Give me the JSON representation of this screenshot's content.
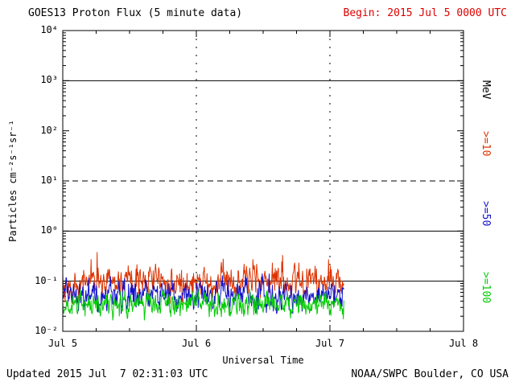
{
  "page": {
    "background": "#ffffff",
    "axis_color": "#000000"
  },
  "header": {
    "title": "GOES13 Proton Flux (5 minute data)",
    "begin_label": "Begin: 2015 Jul 5 0000 UTC",
    "begin_color": "#dd0000"
  },
  "footer": {
    "updated": "Updated 2015 Jul  7 02:31:03 UTC",
    "credit": "NOAA/SWPC Boulder, CO USA"
  },
  "chart_data": {
    "type": "line",
    "title": "GOES13 Proton Flux (5 minute data)",
    "xlabel": "Universal Time",
    "ylabel": "Particles cm⁻²s⁻¹sr⁻¹",
    "unit_label": "MeV",
    "xticklabels": [
      "Jul 5",
      "Jul 6",
      "Jul 7",
      "Jul 8"
    ],
    "xlim_days": [
      0,
      3
    ],
    "ylim": [
      0.01,
      10000
    ],
    "yticklabels": [
      "10⁴",
      "10³",
      "10²",
      "10¹",
      "10⁰",
      "10⁻¹",
      "10⁻²"
    ],
    "solid_gridlines": [
      1000,
      1,
      0.1
    ],
    "dashed_gridlines": [
      10
    ],
    "vertical_gridlines_days": [
      1,
      2
    ],
    "cadence_minutes": 5,
    "data_end_day": 2.105,
    "seed": 20150707,
    "series": [
      {
        "label": ">=10",
        "color": "#dd3300",
        "log10_mean": -1.02,
        "log10_sd": 0.14,
        "log10_max": -0.42,
        "log10_min": -1.45,
        "spike_chance": 0.02,
        "spike_boost": 0.32
      },
      {
        "label": ">=50",
        "color": "#1111cc",
        "log10_mean": -1.27,
        "log10_sd": 0.13,
        "log10_max": -0.85,
        "log10_min": -1.65,
        "spike_chance": 0.0,
        "spike_boost": 0
      },
      {
        "label": ">=100",
        "color": "#00cc00",
        "log10_mean": -1.47,
        "log10_sd": 0.11,
        "log10_max": -1.15,
        "log10_min": -1.78,
        "spike_chance": 0.0,
        "spike_boost": 0
      }
    ]
  }
}
